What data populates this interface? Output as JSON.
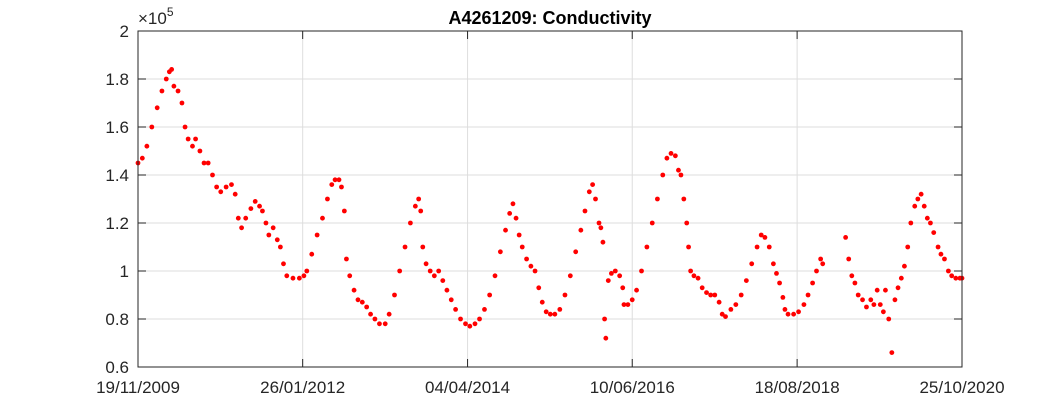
{
  "chart_data": {
    "type": "scatter",
    "title": "A4261209: Conductivity",
    "xlabel": "",
    "ylabel": "",
    "y_exponent_label": "×10",
    "y_exponent_power": "5",
    "x_tick_labels": [
      "19/11/2009",
      "26/01/2012",
      "04/04/2014",
      "10/06/2016",
      "18/08/2018",
      "25/10/2020"
    ],
    "x_ticks": [
      "2009-11-19",
      "2012-01-26",
      "2014-04-04",
      "2016-06-10",
      "2018-08-18",
      "2020-10-25"
    ],
    "xlim": [
      "2009-11-19",
      "2020-10-25"
    ],
    "y_tick_labels": [
      "0.6",
      "0.8",
      "1",
      "1.2",
      "1.4",
      "1.6",
      "1.8",
      "2"
    ],
    "y_ticks": [
      0.6,
      0.8,
      1.0,
      1.2,
      1.4,
      1.6,
      1.8,
      2.0
    ],
    "ylim": [
      0.6,
      2.0
    ],
    "grid": true,
    "marker_color": "#ff0000",
    "series": [
      {
        "points": [
          [
            "2009-11-19",
            1.45
          ],
          [
            "2009-12-10",
            1.47
          ],
          [
            "2010-01-01",
            1.52
          ],
          [
            "2010-01-25",
            1.6
          ],
          [
            "2010-02-20",
            1.68
          ],
          [
            "2010-03-15",
            1.75
          ],
          [
            "2010-04-05",
            1.8
          ],
          [
            "2010-04-20",
            1.83
          ],
          [
            "2010-05-01",
            1.84
          ],
          [
            "2010-05-12",
            1.77
          ],
          [
            "2010-06-01",
            1.75
          ],
          [
            "2010-06-20",
            1.7
          ],
          [
            "2010-07-05",
            1.6
          ],
          [
            "2010-07-20",
            1.55
          ],
          [
            "2010-08-10",
            1.52
          ],
          [
            "2010-08-25",
            1.55
          ],
          [
            "2010-09-15",
            1.5
          ],
          [
            "2010-10-05",
            1.45
          ],
          [
            "2010-10-25",
            1.45
          ],
          [
            "2010-11-15",
            1.4
          ],
          [
            "2010-12-05",
            1.35
          ],
          [
            "2010-12-25",
            1.33
          ],
          [
            "2011-01-20",
            1.35
          ],
          [
            "2011-02-15",
            1.36
          ],
          [
            "2011-03-05",
            1.32
          ],
          [
            "2011-03-20",
            1.22
          ],
          [
            "2011-04-05",
            1.18
          ],
          [
            "2011-04-25",
            1.22
          ],
          [
            "2011-05-20",
            1.26
          ],
          [
            "2011-06-10",
            1.29
          ],
          [
            "2011-07-01",
            1.27
          ],
          [
            "2011-07-15",
            1.25
          ],
          [
            "2011-08-01",
            1.2
          ],
          [
            "2011-08-15",
            1.15
          ],
          [
            "2011-09-05",
            1.18
          ],
          [
            "2011-09-25",
            1.13
          ],
          [
            "2011-10-10",
            1.1
          ],
          [
            "2011-10-25",
            1.03
          ],
          [
            "2011-11-10",
            0.98
          ],
          [
            "2011-12-10",
            0.97
          ],
          [
            "2012-01-10",
            0.97
          ],
          [
            "2012-02-01",
            0.98
          ],
          [
            "2012-02-15",
            1.0
          ],
          [
            "2012-03-10",
            1.07
          ],
          [
            "2012-04-05",
            1.15
          ],
          [
            "2012-05-01",
            1.22
          ],
          [
            "2012-05-25",
            1.3
          ],
          [
            "2012-06-15",
            1.36
          ],
          [
            "2012-07-01",
            1.38
          ],
          [
            "2012-07-20",
            1.38
          ],
          [
            "2012-08-01",
            1.35
          ],
          [
            "2012-08-15",
            1.25
          ],
          [
            "2012-08-25",
            1.05
          ],
          [
            "2012-09-10",
            0.98
          ],
          [
            "2012-10-01",
            0.92
          ],
          [
            "2012-10-20",
            0.88
          ],
          [
            "2012-11-10",
            0.87
          ],
          [
            "2012-12-01",
            0.85
          ],
          [
            "2012-12-20",
            0.82
          ],
          [
            "2013-01-10",
            0.8
          ],
          [
            "2013-02-01",
            0.78
          ],
          [
            "2013-03-01",
            0.78
          ],
          [
            "2013-03-20",
            0.82
          ],
          [
            "2013-04-15",
            0.9
          ],
          [
            "2013-05-10",
            1.0
          ],
          [
            "2013-06-05",
            1.1
          ],
          [
            "2013-07-01",
            1.2
          ],
          [
            "2013-07-25",
            1.27
          ],
          [
            "2013-08-10",
            1.3
          ],
          [
            "2013-08-20",
            1.25
          ],
          [
            "2013-08-30",
            1.1
          ],
          [
            "2013-09-15",
            1.03
          ],
          [
            "2013-10-05",
            1.0
          ],
          [
            "2013-10-25",
            0.98
          ],
          [
            "2013-11-15",
            1.0
          ],
          [
            "2013-12-05",
            0.96
          ],
          [
            "2013-12-25",
            0.92
          ],
          [
            "2014-01-15",
            0.88
          ],
          [
            "2014-02-05",
            0.84
          ],
          [
            "2014-03-01",
            0.8
          ],
          [
            "2014-03-25",
            0.78
          ],
          [
            "2014-04-15",
            0.77
          ],
          [
            "2014-05-10",
            0.78
          ],
          [
            "2014-06-01",
            0.8
          ],
          [
            "2014-06-25",
            0.84
          ],
          [
            "2014-07-20",
            0.9
          ],
          [
            "2014-08-15",
            0.98
          ],
          [
            "2014-09-10",
            1.08
          ],
          [
            "2014-10-05",
            1.17
          ],
          [
            "2014-10-25",
            1.24
          ],
          [
            "2014-11-10",
            1.28
          ],
          [
            "2014-11-25",
            1.22
          ],
          [
            "2014-12-10",
            1.15
          ],
          [
            "2014-12-25",
            1.1
          ],
          [
            "2015-01-15",
            1.05
          ],
          [
            "2015-02-05",
            1.02
          ],
          [
            "2015-02-25",
            1.0
          ],
          [
            "2015-03-15",
            0.93
          ],
          [
            "2015-04-01",
            0.87
          ],
          [
            "2015-04-20",
            0.83
          ],
          [
            "2015-05-10",
            0.82
          ],
          [
            "2015-06-01",
            0.82
          ],
          [
            "2015-06-25",
            0.84
          ],
          [
            "2015-07-20",
            0.9
          ],
          [
            "2015-08-15",
            0.98
          ],
          [
            "2015-09-10",
            1.08
          ],
          [
            "2015-10-05",
            1.17
          ],
          [
            "2015-10-25",
            1.25
          ],
          [
            "2015-11-15",
            1.33
          ],
          [
            "2015-12-01",
            1.36
          ],
          [
            "2015-12-15",
            1.3
          ],
          [
            "2016-01-01",
            1.2
          ],
          [
            "2016-01-10",
            1.18
          ],
          [
            "2016-01-20",
            1.12
          ],
          [
            "2016-01-28",
            0.8
          ],
          [
            "2016-02-03",
            0.72
          ],
          [
            "2016-02-15",
            0.96
          ],
          [
            "2016-03-01",
            0.99
          ],
          [
            "2016-03-20",
            1.0
          ],
          [
            "2016-04-10",
            0.98
          ],
          [
            "2016-04-25",
            0.93
          ],
          [
            "2016-05-01",
            0.86
          ],
          [
            "2016-05-20",
            0.86
          ],
          [
            "2016-06-10",
            0.88
          ],
          [
            "2016-07-01",
            0.92
          ],
          [
            "2016-07-25",
            1.0
          ],
          [
            "2016-08-20",
            1.1
          ],
          [
            "2016-09-15",
            1.2
          ],
          [
            "2016-10-10",
            1.3
          ],
          [
            "2016-11-05",
            1.4
          ],
          [
            "2016-11-25",
            1.47
          ],
          [
            "2016-12-15",
            1.49
          ],
          [
            "2017-01-05",
            1.48
          ],
          [
            "2017-01-20",
            1.42
          ],
          [
            "2017-02-01",
            1.4
          ],
          [
            "2017-02-15",
            1.3
          ],
          [
            "2017-03-01",
            1.2
          ],
          [
            "2017-03-10",
            1.1
          ],
          [
            "2017-03-20",
            1.0
          ],
          [
            "2017-04-05",
            0.98
          ],
          [
            "2017-04-25",
            0.97
          ],
          [
            "2017-05-15",
            0.93
          ],
          [
            "2017-06-05",
            0.91
          ],
          [
            "2017-06-25",
            0.9
          ],
          [
            "2017-07-15",
            0.9
          ],
          [
            "2017-08-05",
            0.87
          ],
          [
            "2017-08-20",
            0.82
          ],
          [
            "2017-09-05",
            0.81
          ],
          [
            "2017-10-01",
            0.84
          ],
          [
            "2017-10-25",
            0.86
          ],
          [
            "2017-11-20",
            0.9
          ],
          [
            "2017-12-15",
            0.96
          ],
          [
            "2018-01-10",
            1.03
          ],
          [
            "2018-02-05",
            1.1
          ],
          [
            "2018-02-25",
            1.15
          ],
          [
            "2018-03-15",
            1.14
          ],
          [
            "2018-04-05",
            1.1
          ],
          [
            "2018-04-25",
            1.03
          ],
          [
            "2018-05-10",
            0.99
          ],
          [
            "2018-05-25",
            0.95
          ],
          [
            "2018-06-10",
            0.89
          ],
          [
            "2018-06-20",
            0.84
          ],
          [
            "2018-07-05",
            0.82
          ],
          [
            "2018-08-01",
            0.82
          ],
          [
            "2018-08-25",
            0.83
          ],
          [
            "2018-09-20",
            0.86
          ],
          [
            "2018-10-10",
            0.9
          ],
          [
            "2018-11-01",
            0.95
          ],
          [
            "2018-11-20",
            1.0
          ],
          [
            "2018-12-10",
            1.05
          ],
          [
            "2018-12-20",
            1.03
          ],
          [
            "2019-04-10",
            1.14
          ],
          [
            "2019-04-25",
            1.05
          ],
          [
            "2019-05-10",
            0.98
          ],
          [
            "2019-05-25",
            0.95
          ],
          [
            "2019-06-10",
            0.9
          ],
          [
            "2019-07-01",
            0.88
          ],
          [
            "2019-07-20",
            0.85
          ],
          [
            "2019-08-10",
            0.88
          ],
          [
            "2019-08-25",
            0.86
          ],
          [
            "2019-09-10",
            0.92
          ],
          [
            "2019-09-25",
            0.86
          ],
          [
            "2019-10-10",
            0.83
          ],
          [
            "2019-10-20",
            0.92
          ],
          [
            "2019-11-05",
            0.8
          ],
          [
            "2019-11-20",
            0.66
          ],
          [
            "2019-12-05",
            0.88
          ],
          [
            "2019-12-20",
            0.93
          ],
          [
            "2020-01-05",
            0.97
          ],
          [
            "2020-01-20",
            1.02
          ],
          [
            "2020-02-05",
            1.1
          ],
          [
            "2020-02-20",
            1.2
          ],
          [
            "2020-03-10",
            1.27
          ],
          [
            "2020-03-25",
            1.3
          ],
          [
            "2020-04-10",
            1.32
          ],
          [
            "2020-04-25",
            1.27
          ],
          [
            "2020-05-10",
            1.22
          ],
          [
            "2020-05-25",
            1.2
          ],
          [
            "2020-06-10",
            1.16
          ],
          [
            "2020-07-01",
            1.1
          ],
          [
            "2020-07-15",
            1.07
          ],
          [
            "2020-08-01",
            1.05
          ],
          [
            "2020-08-20",
            1.0
          ],
          [
            "2020-09-05",
            0.98
          ],
          [
            "2020-09-25",
            0.97
          ],
          [
            "2020-10-15",
            0.97
          ],
          [
            "2020-10-25",
            0.97
          ]
        ]
      }
    ]
  }
}
